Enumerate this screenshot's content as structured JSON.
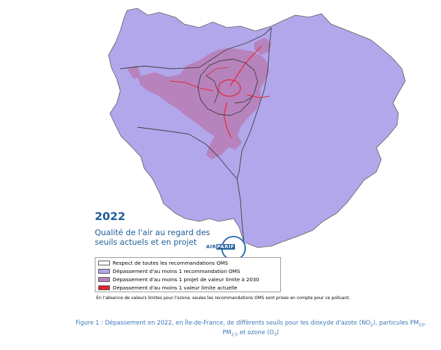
{
  "map": {
    "year": "2022",
    "subtitle": "Qualité de l'air au regard des seuils actuels et en projet",
    "logo_text_left": "AIR",
    "logo_text_right": "PARIF"
  },
  "legend": {
    "items": [
      {
        "label": "Respect de toutes les recommandations OMS",
        "color": "#ffffff"
      },
      {
        "label": "Dépassement d'au moins 1 recommandation OMS",
        "color": "#b1a7ea"
      },
      {
        "label": "Dépassement d'au moins 1 projet de valeur limite à 2030",
        "color": "#b783bd"
      },
      {
        "label": "Dépassement d'au moins 1 valeur limite actuelle",
        "color": "#e8232f"
      }
    ]
  },
  "footnote": "En l'absence de valeurs limites pour l'ozone, seules les recommandations OMS sont prises en compte pour ce polluant.",
  "caption": {
    "prefix": "Figure 1 : Dépassement en 2022, en Île-de-France, de différents seuils pour les dioxyde d'azote (NO",
    "no2_sub": "2",
    "middle": "), particules PM",
    "pm10_sub": "10",
    "sep": ", PM",
    "pm25_sub": "2.5",
    "ozone": " et ozone (O",
    "o3_sub": "3",
    "end": ")"
  }
}
